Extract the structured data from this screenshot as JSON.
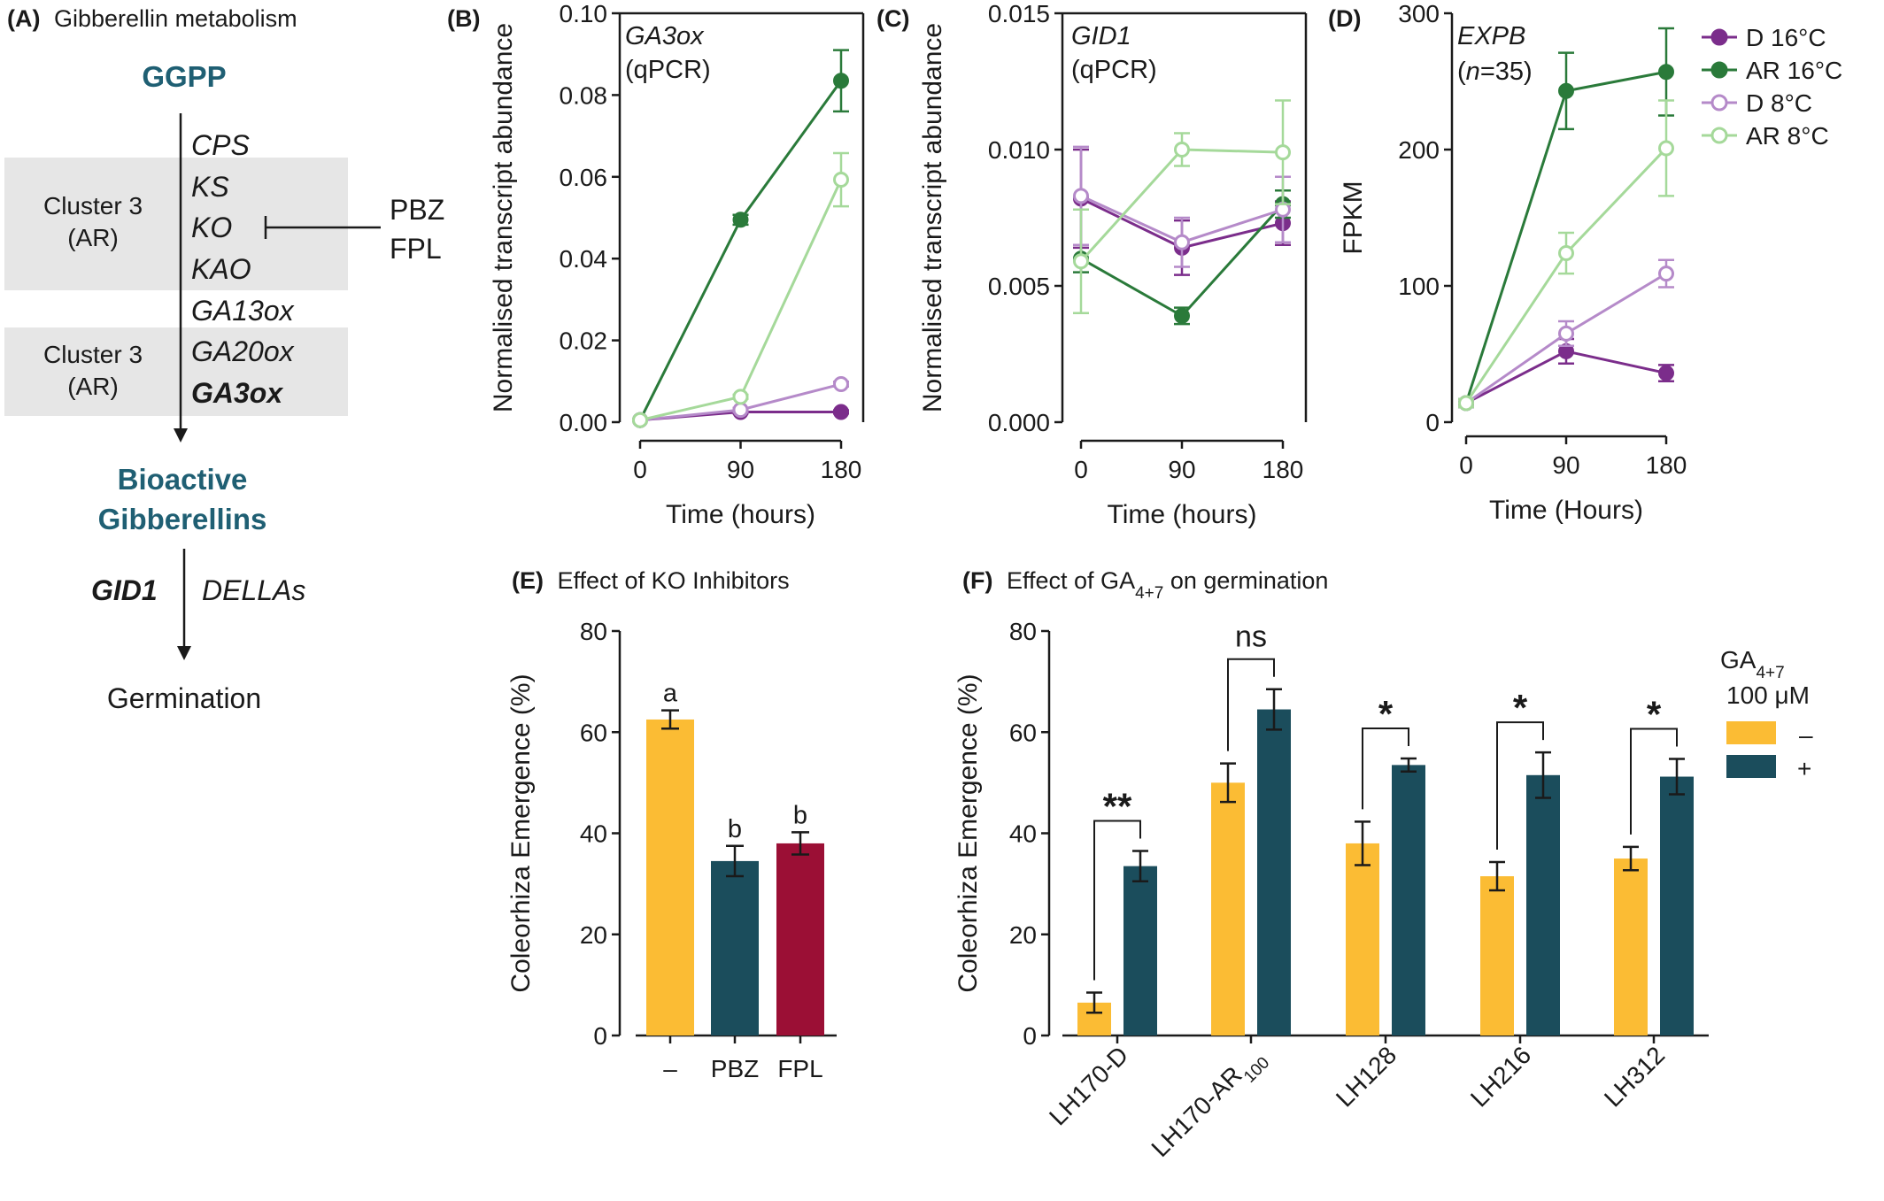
{
  "panelA": {
    "label": "(A)",
    "title": "Gibberellin metabolism",
    "top_node": "GGPP",
    "genes": [
      "CPS",
      "KS",
      "KO",
      "KAO",
      "GA13ox",
      "GA20ox",
      "GA3ox"
    ],
    "cluster_label_1": "Cluster 3",
    "cluster_label_2": "(AR)",
    "inhibitor_1": "PBZ",
    "inhibitor_2": "FPL",
    "mid_node_1": "Bioactive",
    "mid_node_2": "Gibberellins",
    "receptor": "GID1",
    "repressor": "DELLAs",
    "end_node": "Germination",
    "colors": {
      "node": "#1f5f73",
      "cluster_box": "#e6e6e6"
    }
  },
  "legend_D": {
    "entries": [
      "D 16°C",
      "AR 16°C",
      "D 8°C",
      "AR 8°C"
    ]
  },
  "colors": {
    "dark_purple": "#7b2d8b",
    "dark_green": "#2a7a3a",
    "light_purple": "#b58ac9",
    "light_green": "#a5d99a",
    "orange": "#fbbc34",
    "teal": "#1b4d5c",
    "crimson": "#9b0f35"
  },
  "panelE": {
    "legend_title_1": "GA",
    "legend_title_sub": "4+7",
    "legend_title_2": "100 μM",
    "legend_minus": "–",
    "legend_plus": "+"
  },
  "chart_data": [
    {
      "panel": "(B)",
      "type": "line",
      "annotation_1": "GA3ox",
      "annotation_2": "(qPCR)",
      "xlabel": "Time (hours)",
      "ylabel": "Normalised transcript abundance",
      "x": [
        0,
        90,
        180
      ],
      "x_ticks": [
        "0",
        "90",
        "180"
      ],
      "y_ticks": [
        "0.00",
        "0.02",
        "0.04",
        "0.06",
        "0.08",
        "0.10"
      ],
      "ylim": [
        0,
        0.1
      ],
      "series": [
        {
          "name": "D 16°C",
          "values": [
            0.0005,
            0.0025,
            0.0025
          ],
          "err": [
            0.0002,
            0.0004,
            0.0004
          ]
        },
        {
          "name": "AR 16°C",
          "values": [
            0.0005,
            0.0495,
            0.0835
          ],
          "err": [
            0.0002,
            0.0012,
            0.0075
          ]
        },
        {
          "name": "D 8°C",
          "values": [
            0.0005,
            0.003,
            0.0093
          ],
          "err": [
            0.0002,
            0.0005,
            0.0006
          ]
        },
        {
          "name": "AR 8°C",
          "values": [
            0.0005,
            0.0062,
            0.0593
          ],
          "err": [
            0.0002,
            0.0005,
            0.0065
          ]
        }
      ]
    },
    {
      "panel": "(C)",
      "type": "line",
      "annotation_1": "GID1",
      "annotation_2": "(qPCR)",
      "xlabel": "Time (hours)",
      "ylabel": "Normalised transcript abundance",
      "x": [
        0,
        90,
        180
      ],
      "x_ticks": [
        "0",
        "90",
        "180"
      ],
      "y_ticks": [
        "0.000",
        "0.005",
        "0.010",
        "0.015"
      ],
      "ylim": [
        0,
        0.015
      ],
      "series": [
        {
          "name": "D 16°C",
          "values": [
            0.0082,
            0.0064,
            0.0073
          ],
          "err": [
            0.0018,
            0.001,
            0.0008
          ]
        },
        {
          "name": "AR 16°C",
          "values": [
            0.006,
            0.0039,
            0.008
          ],
          "err": [
            0.0005,
            0.0003,
            0.0005
          ]
        },
        {
          "name": "D 8°C",
          "values": [
            0.0083,
            0.0066,
            0.0078
          ],
          "err": [
            0.0018,
            0.0009,
            0.0012
          ]
        },
        {
          "name": "AR 8°C",
          "values": [
            0.0059,
            0.01,
            0.0099
          ],
          "err": [
            0.0019,
            0.0006,
            0.0019
          ]
        }
      ]
    },
    {
      "panel": "(D)",
      "type": "line",
      "annotation_1": "EXPB",
      "annotation_2a": "(",
      "annotation_2b": "n",
      "annotation_2c": "=35)",
      "xlabel": "Time (Hours)",
      "ylabel": "FPKM",
      "x": [
        0,
        90,
        180
      ],
      "x_ticks": [
        "0",
        "90",
        "180"
      ],
      "y_ticks": [
        "0",
        "100",
        "200",
        "300"
      ],
      "ylim": [
        0,
        300
      ],
      "series": [
        {
          "name": "D 16°C",
          "values": [
            14,
            52,
            36
          ],
          "err": [
            3,
            9,
            6
          ]
        },
        {
          "name": "AR 16°C",
          "values": [
            14,
            243,
            257
          ],
          "err": [
            3,
            28,
            32
          ]
        },
        {
          "name": "D 8°C",
          "values": [
            14,
            65,
            109
          ],
          "err": [
            3,
            9,
            10
          ]
        },
        {
          "name": "AR 8°C",
          "values": [
            14,
            124,
            201
          ],
          "err": [
            3,
            15,
            35
          ]
        }
      ]
    },
    {
      "panel": "(E)",
      "type": "bar",
      "title": "Effect of KO Inhibitors",
      "ylabel": "Coleorhiza  Emergence (%)",
      "categories": [
        "–",
        "PBZ",
        "FPL"
      ],
      "values": [
        62.5,
        34.5,
        38
      ],
      "err": [
        1.8,
        3,
        2.2
      ],
      "letters": [
        "a",
        "b",
        "b"
      ],
      "y_ticks": [
        "0",
        "20",
        "40",
        "60",
        "80"
      ],
      "ylim": [
        0,
        80
      ]
    },
    {
      "panel": "(F)",
      "type": "bar",
      "title_main": "Effect of GA",
      "title_sub": "4+7",
      "title_tail": " on germination",
      "ylabel": "Coleorhiza  Emergence (%)",
      "categories": [
        "LH170-D",
        "LH170-AR",
        "LH128",
        "LH216",
        "LH312"
      ],
      "category_subscript": [
        "",
        "100",
        "",
        "",
        ""
      ],
      "series": [
        {
          "name": "–",
          "values": [
            6.5,
            50,
            38,
            31.5,
            35
          ],
          "err": [
            2,
            3.8,
            4.3,
            2.8,
            2.3
          ]
        },
        {
          "name": "+",
          "values": [
            33.5,
            64.5,
            53.5,
            51.5,
            51.2
          ],
          "err": [
            3,
            4,
            1.3,
            4.5,
            3.5
          ]
        }
      ],
      "significance": [
        "**",
        "ns",
        "*",
        "*",
        "*"
      ],
      "y_ticks": [
        "0",
        "20",
        "40",
        "60",
        "80"
      ],
      "ylim": [
        0,
        80
      ]
    }
  ]
}
